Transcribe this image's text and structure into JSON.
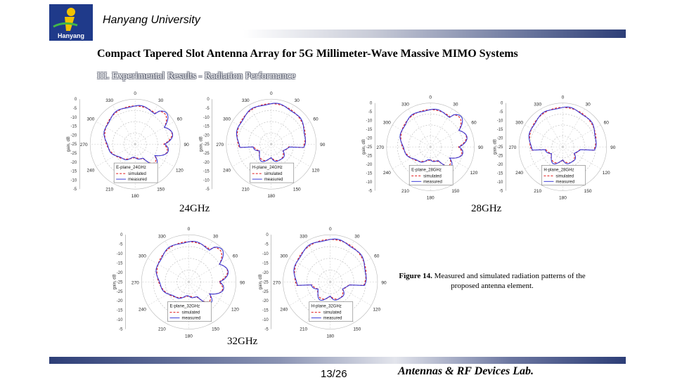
{
  "header": {
    "logo_text": "Hanyang",
    "university": "Hanyang University"
  },
  "slide": {
    "title": "Compact Tapered Slot Antenna Array for 5G Millimeter-Wave Massive MIMO Systems",
    "section": "III. Experimental Results - Radiation Performance"
  },
  "polar": {
    "angle_labels": [
      "0",
      "30",
      "60",
      "90",
      "120",
      "150",
      "180",
      "210",
      "240",
      "270",
      "300",
      "330"
    ],
    "gain_labels": [
      "0",
      "-5",
      "-10",
      "-15",
      "-20",
      "-25",
      "-25",
      "-20",
      "-15",
      "-10",
      "-5"
    ],
    "axis_label": "gain, dB",
    "simulated": "simulated",
    "measured": "measured"
  },
  "plots": [
    {
      "legend_title": "E-plane_24GHz"
    },
    {
      "legend_title": "H-plane_24GHz"
    },
    {
      "legend_title": "E-plane_28GHz"
    },
    {
      "legend_title": "H-plane_28GHz"
    },
    {
      "legend_title": "E-plane_32GHz"
    },
    {
      "legend_title": "H-plane_32GHz"
    }
  ],
  "freq_labels": {
    "f24": "24GHz",
    "f28": "28GHz",
    "f32": "32GHz"
  },
  "caption": {
    "label": "Figure 14.",
    "text": "Measured and simulated radiation patterns of the proposed antenna element."
  },
  "footer": {
    "page": "13/26",
    "lab": "Antennas & RF Devices Lab."
  },
  "colors": {
    "measured": "#3b3bd6",
    "simulated": "#e01b1b",
    "bar": "#2d3e77"
  }
}
